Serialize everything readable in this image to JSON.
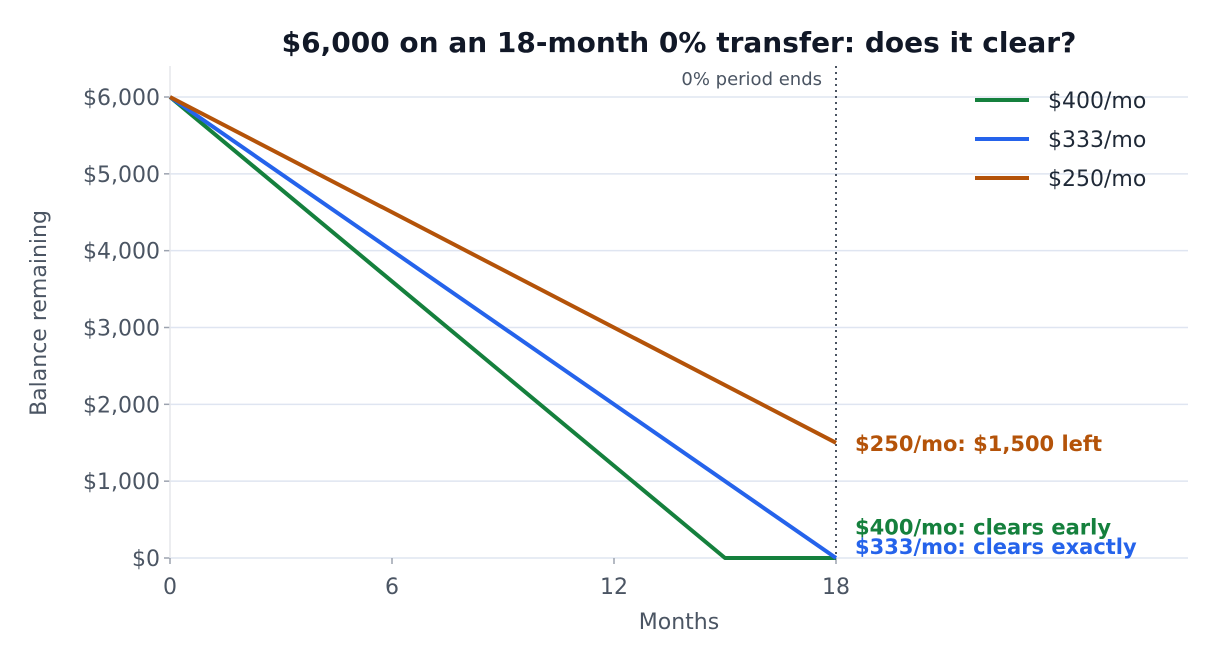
{
  "chart_data": {
    "type": "line",
    "title": "$6,000 on an 18-month 0% transfer: does it clear?",
    "xlabel": "Months",
    "ylabel": "Balance remaining",
    "xlim": [
      0,
      18
    ],
    "ylim": [
      0,
      6000
    ],
    "x_ticks": [
      0,
      6,
      12,
      18
    ],
    "x_tick_labels": [
      "0",
      "6",
      "12",
      "18"
    ],
    "y_ticks": [
      0,
      1000,
      2000,
      3000,
      4000,
      5000,
      6000
    ],
    "y_tick_labels": [
      "$0",
      "$1,000",
      "$2,000",
      "$3,000",
      "$4,000",
      "$5,000",
      "$6,000"
    ],
    "grid": "horizontal",
    "legend_position": "top-right",
    "series": [
      {
        "name": "$400/mo",
        "color": "#15803d",
        "x": [
          0,
          15,
          18
        ],
        "y": [
          6000,
          0,
          0
        ]
      },
      {
        "name": "$333/mo",
        "color": "#2563eb",
        "x": [
          0,
          18
        ],
        "y": [
          6000,
          0
        ]
      },
      {
        "name": "$250/mo",
        "color": "#b45309",
        "x": [
          0,
          18
        ],
        "y": [
          6000,
          1500
        ]
      }
    ],
    "annotations": [
      {
        "type": "vline",
        "x": 18,
        "label": "0% period ends"
      },
      {
        "text": "$250/mo: $1,500 left",
        "x": 18,
        "y": 1500,
        "color": "#b45309"
      },
      {
        "text": "$400/mo: clears early",
        "x": 18,
        "y": 500,
        "color": "#15803d"
      },
      {
        "text": "$333/mo: clears exactly",
        "x": 18,
        "y": 80,
        "color": "#2563eb"
      }
    ]
  }
}
